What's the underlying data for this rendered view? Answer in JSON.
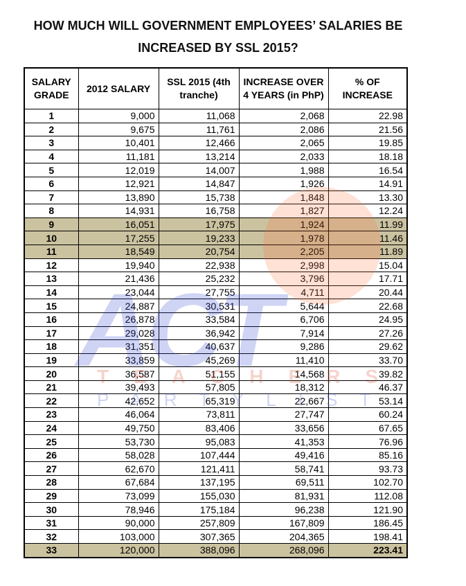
{
  "title": {
    "line1": "HOW MUCH WILL GOVERNMENT EMPLOYEES’ SALARIES BE",
    "line2": "INCREASED BY SSL 2015?"
  },
  "watermark": {
    "logo": "ACT",
    "line1": "TEACHERS",
    "line2": "PARTYLIST"
  },
  "table": {
    "headers": [
      "SALARY GRADE",
      "2012 SALARY",
      "SSL 2015 (4th tranche)",
      "INCREASE OVER 4 YEARS (in PhP)",
      "% OF INCREASE"
    ],
    "highlighted_rows": [
      8,
      9,
      10,
      32
    ],
    "rows": [
      [
        "1",
        "9,000",
        "11,068",
        "2,068",
        "22.98"
      ],
      [
        "2",
        "9,675",
        "11,761",
        "2,086",
        "21.56"
      ],
      [
        "3",
        "10,401",
        "12,466",
        "2,065",
        "19.85"
      ],
      [
        "4",
        "11,181",
        "13,214",
        "2,033",
        "18.18"
      ],
      [
        "5",
        "12,019",
        "14,007",
        "1,988",
        "16.54"
      ],
      [
        "6",
        "12,921",
        "14,847",
        "1,926",
        "14.91"
      ],
      [
        "7",
        "13,890",
        "15,738",
        "1,848",
        "13.30"
      ],
      [
        "8",
        "14,931",
        "16,758",
        "1,827",
        "12.24"
      ],
      [
        "9",
        "16,051",
        "17,975",
        "1,924",
        "11.99"
      ],
      [
        "10",
        "17,255",
        "19,233",
        "1,978",
        "11.46"
      ],
      [
        "11",
        "18,549",
        "20,754",
        "2,205",
        "11.89"
      ],
      [
        "12",
        "19,940",
        "22,938",
        "2,998",
        "15.04"
      ],
      [
        "13",
        "21,436",
        "25,232",
        "3,796",
        "17.71"
      ],
      [
        "14",
        "23,044",
        "27,755",
        "4,711",
        "20.44"
      ],
      [
        "15",
        "24,887",
        "30,531",
        "5,644",
        "22.68"
      ],
      [
        "16",
        "26,878",
        "33,584",
        "6,706",
        "24.95"
      ],
      [
        "17",
        "29,028",
        "36,942",
        "7,914",
        "27.26"
      ],
      [
        "18",
        "31,351",
        "40,637",
        "9,286",
        "29.62"
      ],
      [
        "19",
        "33,859",
        "45,269",
        "11,410",
        "33.70"
      ],
      [
        "20",
        "36,587",
        "51,155",
        "14,568",
        "39.82"
      ],
      [
        "21",
        "39,493",
        "57,805",
        "18,312",
        "46.37"
      ],
      [
        "22",
        "42,652",
        "65,319",
        "22,667",
        "53.14"
      ],
      [
        "23",
        "46,064",
        "73,811",
        "27,747",
        "60.24"
      ],
      [
        "24",
        "49,750",
        "83,406",
        "33,656",
        "67.65"
      ],
      [
        "25",
        "53,730",
        "95,083",
        "41,353",
        "76.96"
      ],
      [
        "26",
        "58,028",
        "107,444",
        "49,416",
        "85.16"
      ],
      [
        "27",
        "62,670",
        "121,411",
        "58,741",
        "93.73"
      ],
      [
        "28",
        "67,684",
        "137,195",
        "69,511",
        "102.70"
      ],
      [
        "29",
        "73,099",
        "155,030",
        "81,931",
        "112.08"
      ],
      [
        "30",
        "78,946",
        "175,184",
        "96,238",
        "121.90"
      ],
      [
        "31",
        "90,000",
        "257,809",
        "167,809",
        "186.45"
      ],
      [
        "32",
        "103,000",
        "307,365",
        "204,365",
        "198.41"
      ],
      [
        "33",
        "120,000",
        "388,096",
        "268,096",
        "223.41"
      ]
    ]
  }
}
